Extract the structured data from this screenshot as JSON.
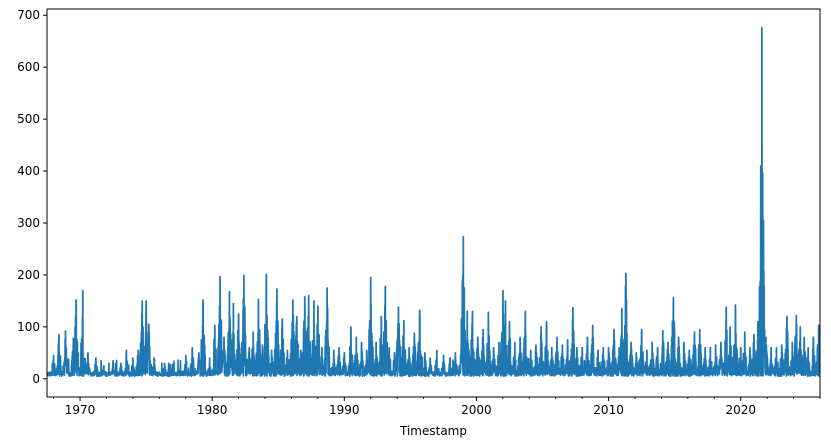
{
  "chart_data": {
    "type": "line",
    "xlabel": "Timestamp",
    "ylabel": "",
    "title": "",
    "xlim": [
      1967.5,
      2026.0
    ],
    "ylim": [
      -35,
      712
    ],
    "x_ticks": [
      1970,
      1980,
      1990,
      2000,
      2010,
      2020
    ],
    "y_ticks": [
      0,
      100,
      200,
      300,
      400,
      500,
      600,
      700
    ],
    "grid": false,
    "legend": "none",
    "series": [
      {
        "color": "#1f77b4",
        "baseline": 5,
        "x": [
          1968.0,
          1968.4,
          1968.9,
          1969.5,
          1969.7,
          1970.2,
          1970.6,
          1971.2,
          1971.8,
          1972.5,
          1973.1,
          1973.5,
          1974.0,
          1974.4,
          1974.7,
          1975.0,
          1975.2,
          1975.6,
          1976.4,
          1977.0,
          1977.6,
          1978.0,
          1978.5,
          1979.0,
          1979.3,
          1979.8,
          1980.2,
          1980.6,
          1980.9,
          1981.3,
          1981.6,
          1982.0,
          1982.4,
          1982.8,
          1983.1,
          1983.5,
          1983.8,
          1984.1,
          1984.5,
          1984.9,
          1985.3,
          1985.7,
          1986.1,
          1986.4,
          1986.7,
          1987.0,
          1987.3,
          1987.7,
          1988.0,
          1988.3,
          1988.7,
          1989.2,
          1989.6,
          1990.0,
          1990.5,
          1990.9,
          1991.3,
          1991.7,
          1992.0,
          1992.4,
          1992.8,
          1993.1,
          1993.4,
          1993.8,
          1994.1,
          1994.5,
          1994.9,
          1995.3,
          1995.7,
          1996.1,
          1996.5,
          1997.0,
          1997.5,
          1998.0,
          1998.4,
          1998.8,
          1999.0,
          1999.3,
          1999.7,
          2000.1,
          2000.5,
          2000.9,
          2001.3,
          2001.7,
          2002.0,
          2002.2,
          2002.5,
          2002.9,
          2003.3,
          2003.7,
          2004.1,
          2004.5,
          2004.9,
          2005.3,
          2005.7,
          2006.1,
          2006.5,
          2006.9,
          2007.3,
          2007.6,
          2008.0,
          2008.4,
          2008.8,
          2009.2,
          2009.6,
          2010.0,
          2010.4,
          2010.8,
          2011.0,
          2011.3,
          2011.7,
          2012.1,
          2012.5,
          2012.9,
          2013.3,
          2013.7,
          2014.1,
          2014.5,
          2014.9,
          2015.3,
          2015.7,
          2016.1,
          2016.5,
          2016.9,
          2017.3,
          2017.7,
          2018.1,
          2018.5,
          2018.9,
          2019.2,
          2019.6,
          2020.0,
          2020.3,
          2020.7,
          2021.0,
          2021.3,
          2021.6,
          2021.9,
          2022.3,
          2022.7,
          2023.1,
          2023.5,
          2023.9,
          2024.2,
          2024.5,
          2024.8,
          2025.1,
          2025.5,
          2025.9
        ],
        "y": [
          45,
          85,
          92,
          78,
          152,
          170,
          50,
          40,
          25,
          35,
          30,
          55,
          40,
          55,
          150,
          150,
          105,
          40,
          30,
          28,
          35,
          45,
          60,
          50,
          152,
          40,
          103,
          197,
          80,
          168,
          145,
          125,
          199,
          60,
          90,
          153,
          65,
          201,
          55,
          173,
          115,
          55,
          152,
          120,
          55,
          158,
          160,
          150,
          140,
          60,
          175,
          55,
          60,
          50,
          100,
          80,
          70,
          55,
          195,
          70,
          120,
          178,
          60,
          50,
          138,
          112,
          60,
          88,
          132,
          50,
          40,
          55,
          45,
          40,
          50,
          45,
          274,
          130,
          130,
          80,
          95,
          128,
          60,
          70,
          170,
          150,
          110,
          70,
          80,
          130,
          55,
          65,
          100,
          110,
          60,
          80,
          65,
          75,
          137,
          60,
          60,
          80,
          103,
          55,
          60,
          60,
          95,
          60,
          135,
          203,
          70,
          50,
          95,
          55,
          70,
          60,
          93,
          70,
          156,
          80,
          70,
          55,
          90,
          95,
          60,
          60,
          65,
          70,
          138,
          100,
          142,
          60,
          90,
          60,
          85,
          110,
          676,
          80,
          60,
          60,
          65,
          120,
          70,
          122,
          100,
          80,
          60,
          80,
          103
        ]
      }
    ]
  }
}
